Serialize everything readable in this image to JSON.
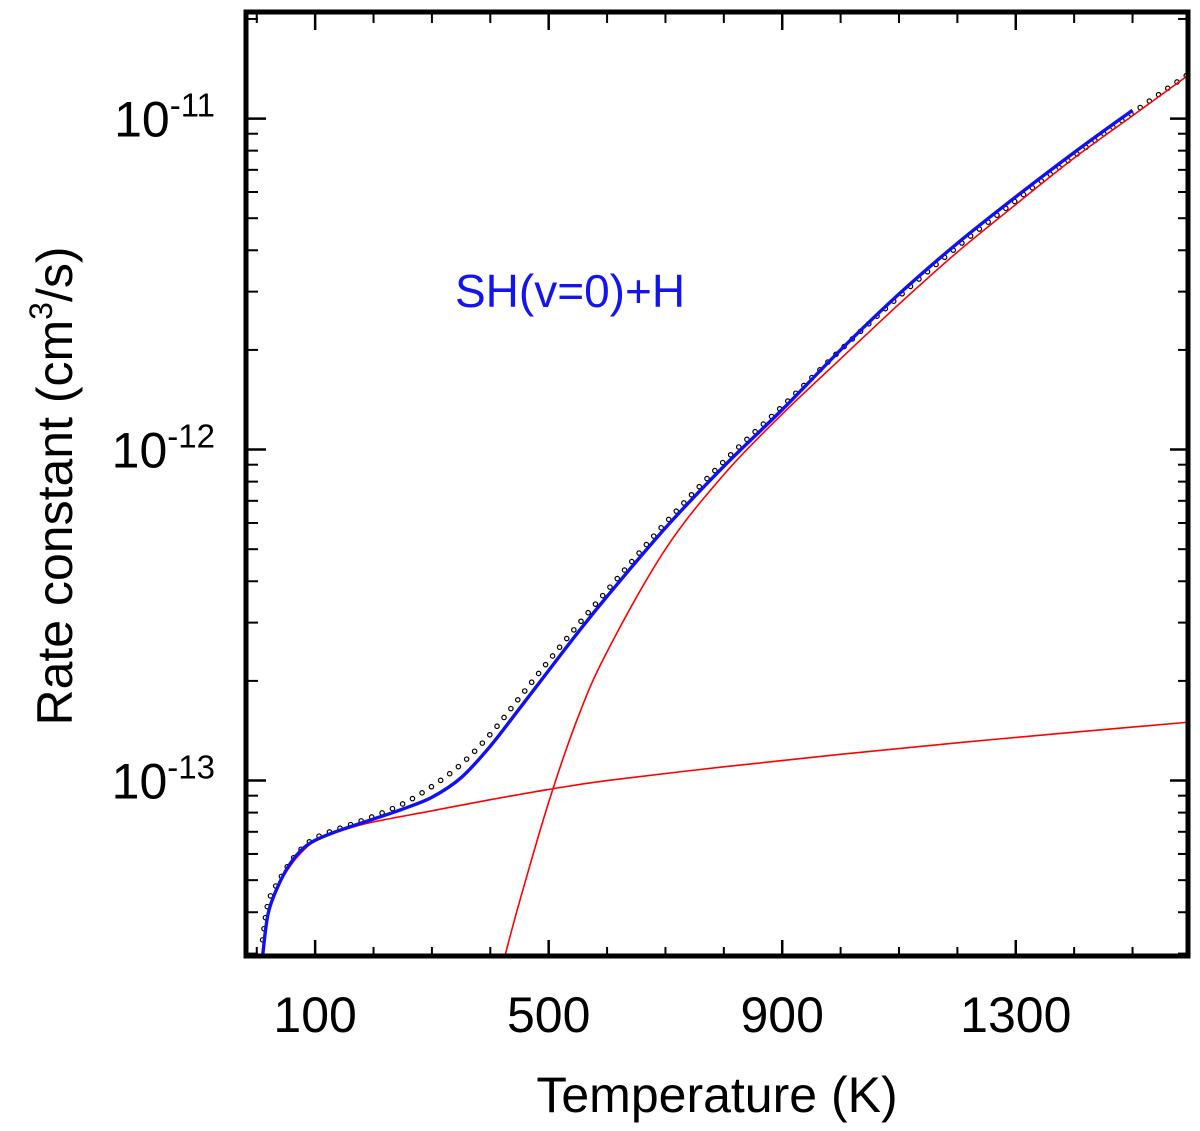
{
  "chart_data": {
    "type": "line",
    "xlabel": "Temperature (K)",
    "ylabel_main": "Rate constant (cm",
    "ylabel_sup": "3",
    "ylabel_tail": "/s)",
    "annotation": "SH(v=0)+H",
    "xlim": [
      -15,
      1595
    ],
    "ylim": [
      2.95e-14,
      2.07e-11
    ],
    "yscale": "log",
    "grid": false,
    "x_ticks": [
      100,
      500,
      900,
      1300
    ],
    "x_tick_labels": [
      "100",
      "500",
      "900",
      "1300"
    ],
    "y_ticks": [
      1e-13,
      1e-12,
      1e-11
    ],
    "y_tick_base": "10",
    "y_tick_exponents": [
      "-13",
      "-12",
      "-11"
    ],
    "colors": {
      "total": "#1010f0",
      "components": "#ff0000",
      "points": "#000000",
      "annotation": "#1414f0"
    },
    "series": [
      {
        "style": "blue-line",
        "x": [
          10,
          20,
          40,
          60,
          80,
          100,
          130,
          160,
          200,
          250,
          300,
          350,
          400,
          450,
          500,
          550,
          600,
          700,
          800,
          900,
          1000,
          1100,
          1200,
          1300,
          1400,
          1500
        ],
        "y": [
          2.95e-14,
          4e-14,
          4.95e-14,
          5.7e-14,
          6.25e-14,
          6.6e-14,
          6.95e-14,
          7.25e-14,
          7.65e-14,
          8.2e-14,
          8.9e-14,
          1.02e-13,
          1.27e-13,
          1.65e-13,
          2.15e-13,
          2.8e-13,
          3.6e-13,
          5.8e-13,
          8.9e-13,
          1.32e-12,
          2e-12,
          2.95e-12,
          4.2e-12,
          5.8e-12,
          7.9e-12,
          1.06e-11
        ]
      },
      {
        "style": "red-thin-line",
        "x": [
          10,
          20,
          40,
          60,
          80,
          100,
          150,
          200,
          300,
          400,
          500,
          600,
          800,
          1000,
          1200,
          1400,
          1595
        ],
        "y": [
          2.9e-14,
          3.95e-14,
          4.9e-14,
          5.6e-14,
          6.15e-14,
          6.55e-14,
          7.1e-14,
          7.5e-14,
          8.1e-14,
          8.75e-14,
          9.4e-14,
          1e-13,
          1.1e-13,
          1.2e-13,
          1.3e-13,
          1.4e-13,
          1.5e-13
        ]
      },
      {
        "style": "red-thin-line",
        "x": [
          425,
          450,
          500,
          550,
          600,
          700,
          800,
          900,
          1000,
          1100,
          1200,
          1300,
          1400,
          1500,
          1595
        ],
        "y": [
          2.95e-14,
          4.3e-14,
          8.6e-14,
          1.55e-13,
          2.45e-13,
          5e-13,
          8.4e-13,
          1.28e-12,
          1.88e-12,
          2.75e-12,
          3.95e-12,
          5.5e-12,
          7.6e-12,
          1.02e-11,
          1.35e-11
        ]
      },
      {
        "style": "dotted-points",
        "x": [
          10,
          20,
          40,
          60,
          80,
          100,
          130,
          160,
          200,
          250,
          300,
          350,
          400,
          450,
          500,
          550,
          600,
          700,
          800,
          900,
          1000,
          1100,
          1200,
          1300,
          1400,
          1500,
          1595
        ],
        "y": [
          3.3e-14,
          4.3e-14,
          5.05e-14,
          5.75e-14,
          6.3e-14,
          6.7e-14,
          7.05e-14,
          7.35e-14,
          7.8e-14,
          8.5e-14,
          9.6e-14,
          1.12e-13,
          1.38e-13,
          1.78e-13,
          2.3e-13,
          2.95e-13,
          3.75e-13,
          6e-13,
          9.2e-13,
          1.35e-12,
          2e-12,
          2.9e-12,
          4.1e-12,
          5.65e-12,
          7.7e-12,
          1.04e-11,
          1.36e-11
        ]
      }
    ]
  }
}
